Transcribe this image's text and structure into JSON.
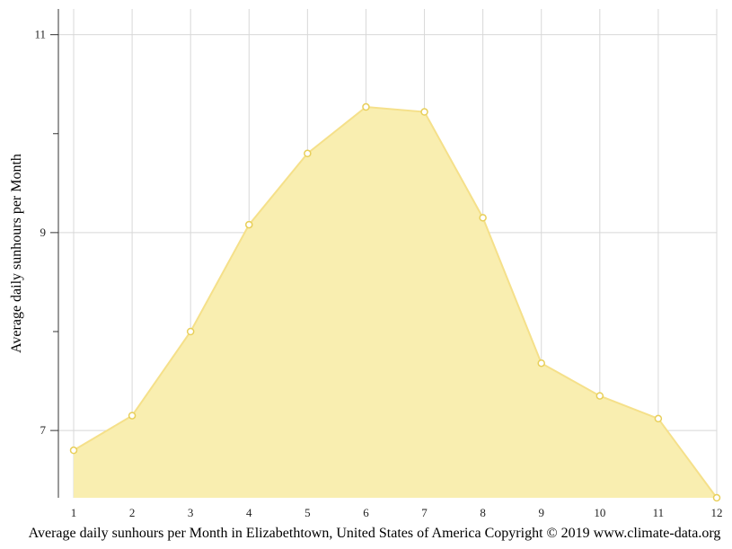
{
  "chart_data": {
    "type": "area",
    "x": [
      1,
      2,
      3,
      4,
      5,
      6,
      7,
      8,
      9,
      10,
      11,
      12
    ],
    "values": [
      6.8,
      7.15,
      8.0,
      9.08,
      9.8,
      10.27,
      10.22,
      9.15,
      7.68,
      7.35,
      7.12,
      6.32
    ],
    "ylabel": "Average daily sunhours per Month",
    "xlabel": "Average daily sunhours per Month in Elizabethtown, United States of America Copyright © 2019 www.climate-data.org",
    "x_ticks": [
      "1",
      "2",
      "3",
      "4",
      "5",
      "6",
      "7",
      "8",
      "9",
      "10",
      "11",
      "12"
    ],
    "y_ticks": [
      "7",
      "9",
      "11"
    ],
    "y_tick_values": [
      7,
      9,
      11
    ],
    "y_minor_ticks": [
      8,
      10
    ],
    "xlim": [
      1,
      12
    ],
    "ylim": [
      6.32,
      11.26
    ],
    "grid": true,
    "fill_color": "#f9eeb0",
    "line_color": "#f5e08a",
    "marker_color": "#e8cf5a"
  }
}
